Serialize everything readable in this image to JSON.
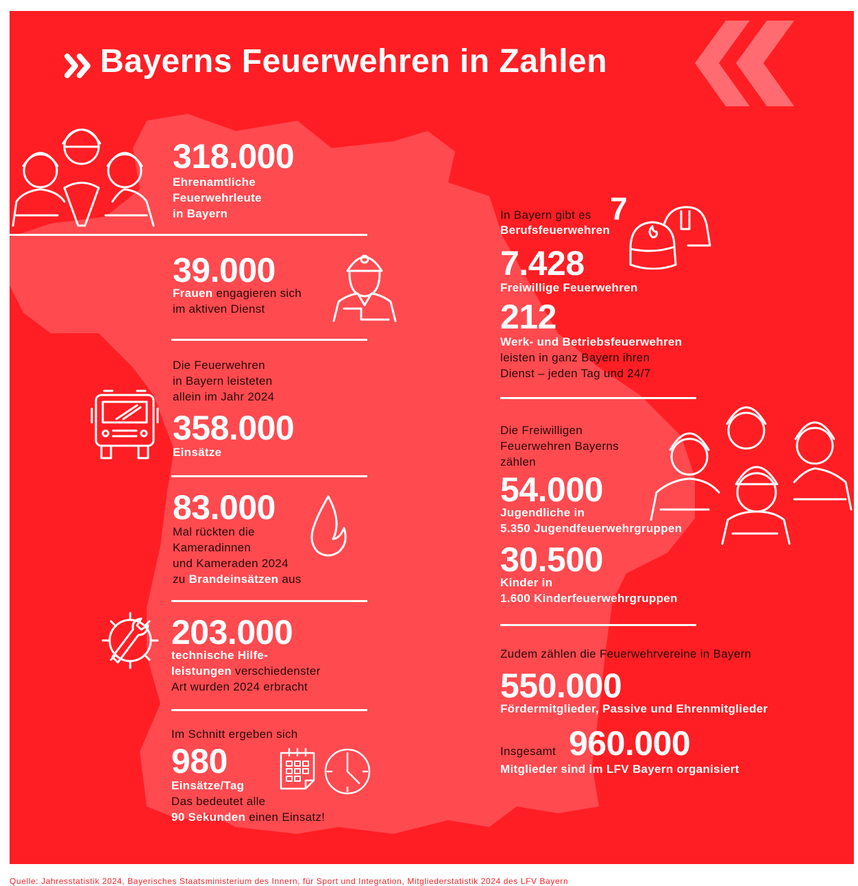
{
  "colors": {
    "background": "#ff1e24",
    "map": "#ff4a50",
    "text_dark": "#2a0a0a",
    "text_light": "#ffffff"
  },
  "title": "Bayerns Feuerwehren in Zahlen",
  "title_icon": "double-chevron-right-icon",
  "left": [
    {
      "number": "318.000",
      "lines": [
        [
          {
            "t": "Ehrenamtliche",
            "b": true
          }
        ],
        [
          {
            "t": "Feuerwehrleute",
            "b": true
          }
        ],
        [
          {
            "t": "in Bayern",
            "b": true
          }
        ]
      ],
      "icon": "firefighters-group-icon"
    },
    {
      "number": "39.000",
      "lines": [
        [
          {
            "t": "Frauen",
            "b": true
          },
          {
            "t": " engagieren sich",
            "b": false
          }
        ],
        [
          {
            "t": "im aktiven Dienst",
            "b": false
          }
        ]
      ],
      "icon": "female-firefighter-icon"
    },
    {
      "intro": [
        "Die Feuerwehren",
        "in Bayern leisteten",
        "allein im Jahr 2024"
      ],
      "number": "358.000",
      "lines": [
        [
          {
            "t": "Einsätze",
            "b": true
          }
        ]
      ],
      "icon": "fire-truck-icon"
    },
    {
      "number": "83.000",
      "lines": [
        [
          {
            "t": "Mal rückten die",
            "b": false
          }
        ],
        [
          {
            "t": "Kameradinnen",
            "b": false
          }
        ],
        [
          {
            "t": "und Kameraden 2024",
            "b": false
          }
        ],
        [
          {
            "t": "zu ",
            "b": false
          },
          {
            "t": "Brandeinsätzen",
            "b": true
          },
          {
            "t": " aus",
            "b": false
          }
        ]
      ],
      "icon": "flame-icon"
    },
    {
      "number": "203.000",
      "lines": [
        [
          {
            "t": "technische Hilfe-",
            "b": true
          }
        ],
        [
          {
            "t": "leistungen",
            "b": true
          },
          {
            "t": " verschiedenster",
            "b": false
          }
        ],
        [
          {
            "t": "Art wurden 2024 erbracht",
            "b": false
          }
        ]
      ],
      "icon": "wrench-gear-icon"
    },
    {
      "intro": [
        "Im Schnitt ergeben sich"
      ],
      "number": "980",
      "lines": [
        [
          {
            "t": "Einsätze/Tag",
            "b": true
          }
        ],
        [
          {
            "t": "Das bedeutet alle",
            "b": false
          }
        ],
        [
          {
            "t": "90 Sekunden",
            "b": true
          },
          {
            "t": " einen Einsatz!",
            "b": false
          }
        ]
      ],
      "icon": "calendar-clock-icon"
    }
  ],
  "right": {
    "beruf_intro": "In Bayern gibt es",
    "beruf_number": "7",
    "beruf_label": "Berufsfeuerwehren",
    "freiwillig_number": "7.428",
    "freiwillig_label": "Freiwillige Feuerwehren",
    "werk_number": "212",
    "werk_label": "Werk- und Betriebsfeuerwehren",
    "werk_text": [
      "leisten in ganz Bayern ihren",
      "Dienst – jeden Tag und 24/7"
    ],
    "jugend_intro": [
      "Die Freiwilligen",
      "Feuerwehren Bayerns",
      "zählen"
    ],
    "jugend_number": "54.000",
    "jugend_label": [
      "Jugendliche in",
      "5.350 Jugendfeuerwehrgruppen"
    ],
    "kinder_number": "30.500",
    "kinder_label": [
      "Kinder in",
      "1.600 Kinderfeuerwehrgruppen"
    ],
    "verein_intro": "Zudem zählen die Feuerwehrvereine in Bayern",
    "verein_number": "550.000",
    "verein_label": "Fördermitglieder, Passive und Ehrenmitglieder",
    "total_prefix": "Insgesamt",
    "total_number": "960.000",
    "total_label": "Mitglieder sind im LFV Bayern organisiert"
  },
  "source": "Quelle: Jahresstatistik 2024, Bayerisches Staatsministerium des Innern, für Sport und Integration, Mitgliederstatistik 2024 des LFV Bayern"
}
